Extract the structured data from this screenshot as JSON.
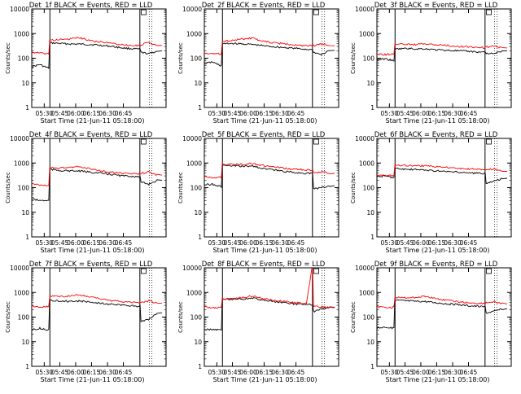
{
  "chart_data": [
    {
      "type": "line",
      "title": "Det_1f BLACK = Events, RED = LLD",
      "xlabel": "Start Time (21-Jun-11 05:18:00)",
      "ylabel": "Counts/sec",
      "x_ticks": [
        "05:30",
        "05:45",
        "06:00",
        "06:15",
        "06:30",
        "06:45"
      ],
      "y_ticks": [
        "1",
        "10",
        "100",
        "1000",
        "10000"
      ],
      "ylim": [
        1,
        10000
      ],
      "y_scale": "log",
      "series": [
        {
          "color": "#000000",
          "values": [
            45,
            55,
            40,
            420,
            400,
            380,
            370,
            360,
            330,
            300,
            260,
            240,
            230,
            170,
            150,
            200
          ]
        },
        {
          "color": "#ff0000",
          "values": [
            180,
            160,
            150,
            540,
            560,
            600,
            680,
            520,
            450,
            400,
            350,
            320,
            330,
            360,
            420,
            330
          ]
        }
      ]
    },
    {
      "type": "line",
      "title": "Det_2f BLACK = Events, RED = LLD",
      "xlabel": "Start Time (21-Jun-11 05:18:00)",
      "ylabel": "Counts/sec",
      "x_ticks": [
        "05:30",
        "05:45",
        "06:00",
        "06:15",
        "06:30",
        "06:45"
      ],
      "y_ticks": [
        "1",
        "10",
        "100",
        "1000",
        "10000"
      ],
      "ylim": [
        1,
        10000
      ],
      "y_scale": "log",
      "series": [
        {
          "color": "#000000",
          "values": [
            60,
            70,
            50,
            380,
            400,
            380,
            360,
            320,
            290,
            270,
            250,
            230,
            220,
            170,
            140,
            210
          ]
        },
        {
          "color": "#ff0000",
          "values": [
            160,
            150,
            150,
            480,
            520,
            600,
            650,
            480,
            420,
            380,
            340,
            320,
            320,
            330,
            380,
            320
          ]
        }
      ]
    },
    {
      "type": "line",
      "title": "Det_3f BLACK = Events, RED = LLD",
      "xlabel": "Start Time (21-Jun-11 05:18:00)",
      "ylabel": "Counts/sec",
      "x_ticks": [
        "05:30",
        "05:45",
        "06:00",
        "06:15",
        "06:30",
        "06:45"
      ],
      "y_ticks": [
        "1",
        "10",
        "100",
        "1000",
        "10000"
      ],
      "ylim": [
        1,
        10000
      ],
      "y_scale": "log",
      "series": [
        {
          "color": "#000000",
          "values": [
            85,
            95,
            80,
            230,
            250,
            240,
            240,
            220,
            210,
            200,
            190,
            180,
            180,
            160,
            150,
            200
          ]
        },
        {
          "color": "#ff0000",
          "values": [
            150,
            140,
            150,
            360,
            380,
            360,
            380,
            350,
            330,
            300,
            290,
            280,
            270,
            290,
            300,
            260
          ]
        }
      ]
    },
    {
      "type": "line",
      "title": "Det_4f BLACK = Events, RED = LLD",
      "xlabel": "Start Time (21-Jun-11 05:18:00)",
      "ylabel": "Counts/sec",
      "x_ticks": [
        "05:30",
        "05:45",
        "06:00",
        "06:15",
        "06:30",
        "06:45"
      ],
      "y_ticks": [
        "1",
        "10",
        "100",
        "1000",
        "10000"
      ],
      "ylim": [
        1,
        10000
      ],
      "y_scale": "log",
      "series": [
        {
          "color": "#000000",
          "values": [
            35,
            30,
            30,
            550,
            500,
            480,
            470,
            420,
            380,
            340,
            300,
            290,
            270,
            160,
            140,
            200
          ]
        },
        {
          "color": "#ff0000",
          "values": [
            150,
            130,
            120,
            650,
            620,
            660,
            720,
            560,
            480,
            420,
            380,
            360,
            360,
            380,
            430,
            320
          ]
        }
      ]
    },
    {
      "type": "line",
      "title": "Det_5f BLACK = Events, RED = LLD",
      "xlabel": "Start Time (21-Jun-11 05:18:00)",
      "ylabel": "Counts/sec",
      "x_ticks": [
        "05:30",
        "05:45",
        "06:00",
        "06:15",
        "06:30",
        "06:45"
      ],
      "y_ticks": [
        "1",
        "10",
        "100",
        "1000",
        "10000"
      ],
      "ylim": [
        1,
        10000
      ],
      "y_scale": "log",
      "series": [
        {
          "color": "#000000",
          "values": [
            130,
            140,
            110,
            800,
            760,
            740,
            750,
            600,
            520,
            450,
            410,
            380,
            370,
            90,
            100,
            120
          ]
        },
        {
          "color": "#ff0000",
          "values": [
            280,
            260,
            260,
            900,
            880,
            880,
            960,
            780,
            680,
            600,
            560,
            520,
            510,
            380,
            450,
            380
          ]
        }
      ]
    },
    {
      "type": "line",
      "title": "Det_6f BLACK = Events, RED = LLD",
      "xlabel": "Start Time (21-Jun-11 05:18:00)",
      "ylabel": "Counts/sec",
      "x_ticks": [
        "05:30",
        "05:45",
        "06:00",
        "06:15",
        "06:30",
        "06:45"
      ],
      "y_ticks": [
        "1",
        "10",
        "100",
        "1000",
        "10000"
      ],
      "ylim": [
        1,
        10000
      ],
      "y_scale": "log",
      "series": [
        {
          "color": "#000000",
          "values": [
            280,
            300,
            260,
            600,
            560,
            540,
            520,
            480,
            450,
            420,
            400,
            380,
            380,
            150,
            180,
            240
          ]
        },
        {
          "color": "#ff0000",
          "values": [
            320,
            300,
            320,
            820,
            800,
            780,
            760,
            700,
            660,
            620,
            580,
            560,
            550,
            520,
            580,
            460
          ]
        }
      ]
    },
    {
      "type": "line",
      "title": "Det_7f BLACK = Events, RED = LLD",
      "xlabel": "Start Time (21-Jun-11 05:18:00)",
      "ylabel": "Counts/sec",
      "x_ticks": [
        "05:30",
        "05:45",
        "06:00",
        "06:15",
        "06:30",
        "06:45"
      ],
      "y_ticks": [
        "1",
        "10",
        "100",
        "1000",
        "10000"
      ],
      "ylim": [
        1,
        10000
      ],
      "y_scale": "log",
      "series": [
        {
          "color": "#000000",
          "values": [
            30,
            35,
            30,
            480,
            460,
            440,
            450,
            400,
            360,
            330,
            300,
            280,
            280,
            70,
            80,
            150
          ]
        },
        {
          "color": "#ff0000",
          "values": [
            280,
            260,
            260,
            700,
            680,
            720,
            800,
            640,
            540,
            460,
            420,
            400,
            400,
            400,
            450,
            360
          ]
        }
      ]
    },
    {
      "type": "line",
      "title": "Det_8f BLACK = Events, RED = LLD",
      "xlabel": "Start Time (21-Jun-11 05:18:00)",
      "ylabel": "Counts/sec",
      "x_ticks": [
        "05:30",
        "05:45",
        "06:00",
        "06:15",
        "06:30",
        "06:45"
      ],
      "y_ticks": [
        "1",
        "10",
        "100",
        "1000",
        "10000"
      ],
      "ylim": [
        1,
        10000
      ],
      "y_scale": "log",
      "series": [
        {
          "color": "#000000",
          "values": [
            30,
            32,
            30,
            520,
            500,
            540,
            600,
            480,
            420,
            380,
            340,
            320,
            320,
            170,
            220,
            250
          ]
        },
        {
          "color": "#ff0000",
          "values": [
            260,
            240,
            250,
            560,
            560,
            620,
            720,
            560,
            480,
            420,
            380,
            360,
            9000,
            280,
            260,
            240
          ]
        }
      ]
    },
    {
      "type": "line",
      "title": "Det_9f BLACK = Events, RED = LLD",
      "xlabel": "Start Time (21-Jun-11 05:18:00)",
      "ylabel": "Counts/sec",
      "x_ticks": [
        "05:30",
        "05:45",
        "06:00",
        "06:15",
        "06:30",
        "06:45"
      ],
      "y_ticks": [
        "1",
        "10",
        "100",
        "1000",
        "10000"
      ],
      "ylim": [
        1,
        10000
      ],
      "y_scale": "log",
      "series": [
        {
          "color": "#000000",
          "values": [
            35,
            40,
            35,
            480,
            460,
            440,
            430,
            380,
            350,
            320,
            290,
            270,
            260,
            150,
            170,
            220
          ]
        },
        {
          "color": "#ff0000",
          "values": [
            260,
            250,
            250,
            620,
            600,
            620,
            700,
            560,
            480,
            420,
            380,
            360,
            360,
            380,
            420,
            340
          ]
        }
      ]
    }
  ]
}
